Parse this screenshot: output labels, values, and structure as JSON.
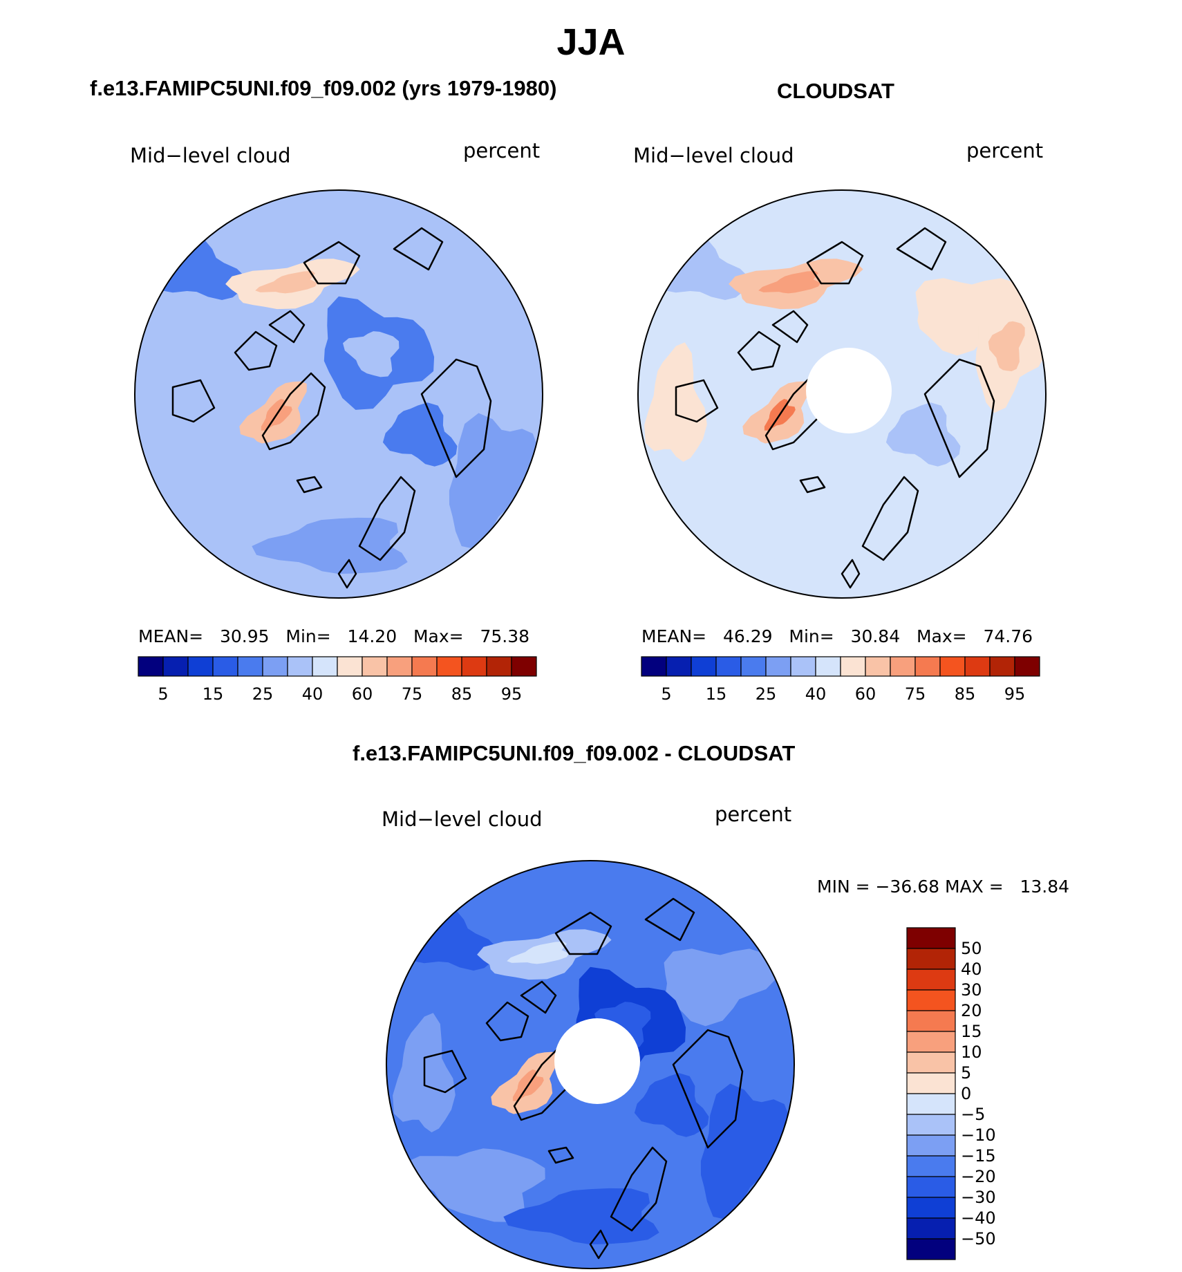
{
  "figure": {
    "title": "JJA",
    "panels": [
      {
        "title": "f.e13.FAMIPC5UNI.f09_f09.002 (yrs 1979-1980)",
        "variable_label": "Mid−level cloud",
        "units_label": "percent",
        "stats": {
          "mean_label": "MEAN=",
          "mean": "30.95",
          "min_label": "Min=",
          "min": "14.20",
          "max_label": "Max=",
          "max": "75.38"
        },
        "dominant_level": 30,
        "has_pole_hole": false,
        "highlights": [
          {
            "name": "greenland-warm",
            "level": 60
          },
          {
            "name": "siberia-warm",
            "level": 50
          },
          {
            "name": "arctic-low",
            "level": 20
          }
        ]
      },
      {
        "title": "CLOUDSAT",
        "variable_label": "Mid−level cloud",
        "units_label": "percent",
        "stats": {
          "mean_label": "MEAN=",
          "mean": "46.29",
          "min_label": "Min=",
          "min": "30.84",
          "max_label": "Max=",
          "max": "74.76"
        },
        "dominant_level": 45,
        "has_pole_hole": true,
        "highlights": [
          {
            "name": "greenland-warm",
            "level": 65
          },
          {
            "name": "siberia-warm",
            "level": 60
          },
          {
            "name": "pacific-warm",
            "level": 55
          }
        ]
      },
      {
        "title": "f.e13.FAMIPC5UNI.f09_f09.002 - CLOUDSAT",
        "variable_label": "Mid−level cloud",
        "units_label": "percent",
        "stats": {
          "text": "MIN = −36.68 MAX =   13.84"
        },
        "dominant_level": -20,
        "has_pole_hole": true,
        "highlights": [
          {
            "name": "greenland-warm",
            "level": 7
          },
          {
            "name": "siberia-light",
            "level": -7
          },
          {
            "name": "arctic-deep",
            "level": -35
          }
        ]
      }
    ],
    "colorbar_levels": [
      "5",
      "15",
      "25",
      "40",
      "60",
      "75",
      "85",
      "95"
    ],
    "colorbar_colors": [
      "#02007e",
      "#061fb0",
      "#0f3fd5",
      "#2a5ce6",
      "#4a7bee",
      "#7c9ff3",
      "#aac2f8",
      "#d5e4fb",
      "#fbe3d3",
      "#f9c3a7",
      "#f8a07d",
      "#f57a50",
      "#f4541f",
      "#dd3a12",
      "#b22406",
      "#7e0000"
    ],
    "diff_colorbar_levels": [
      "50",
      "40",
      "30",
      "20",
      "15",
      "10",
      "5",
      "0",
      "−5",
      "−10",
      "−15",
      "−20",
      "−30",
      "−40",
      "−50"
    ],
    "diff_colorbar_colors": [
      "#7e0000",
      "#b22406",
      "#dd3a12",
      "#f4541f",
      "#f57a50",
      "#f8a07d",
      "#f9c3a7",
      "#fbe3d3",
      "#d5e4fb",
      "#aac2f8",
      "#7c9ff3",
      "#4a7bee",
      "#2a5ce6",
      "#0f3fd5",
      "#061fb0",
      "#02007e"
    ]
  }
}
